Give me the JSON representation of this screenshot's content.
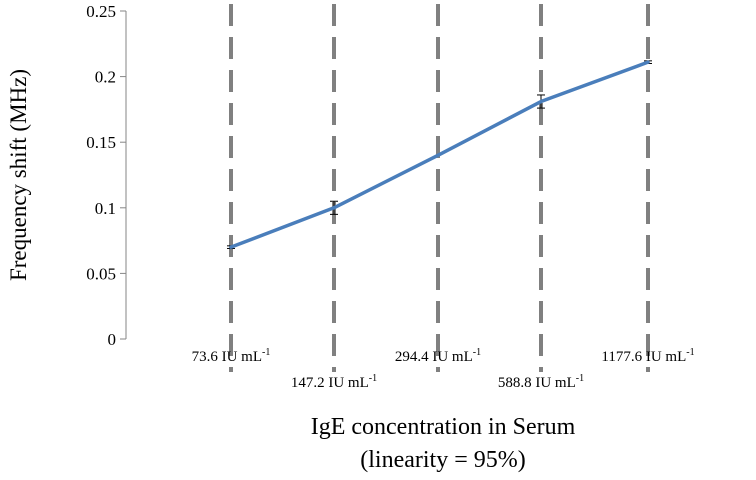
{
  "chart_data": {
    "type": "line",
    "title": "",
    "ylabel": "Frequency shift (MHz)",
    "xlabel": "IgE concentration in Serum",
    "xlabel_sub": "(linearity = 95%)",
    "ylim": [
      0,
      0.25
    ],
    "yticks": [
      "0",
      "0.05",
      "0.1",
      "0.15",
      "0.2",
      "0.25"
    ],
    "grid": "vertical dashed lines at categories",
    "legend": "none",
    "categories": [
      {
        "base": "73.6 IU mL",
        "sup": "-1"
      },
      {
        "base": "147.2 IU mL",
        "sup": "-1"
      },
      {
        "base": "294.4 IU mL",
        "sup": "-1"
      },
      {
        "base": "588.8 IU mL",
        "sup": "-1"
      },
      {
        "base": "1177.6 IU mL",
        "sup": "-1"
      }
    ],
    "series": [
      {
        "values": [
          0.07,
          0.1,
          0.14,
          0.181,
          0.211
        ],
        "errors": [
          0.001,
          0.005,
          0.0,
          0.005,
          0.001
        ],
        "color": "#4a7ebb"
      }
    ],
    "colors": {
      "line": "#4a7ebb",
      "gridline": "#808080",
      "axis": "#868686"
    }
  }
}
